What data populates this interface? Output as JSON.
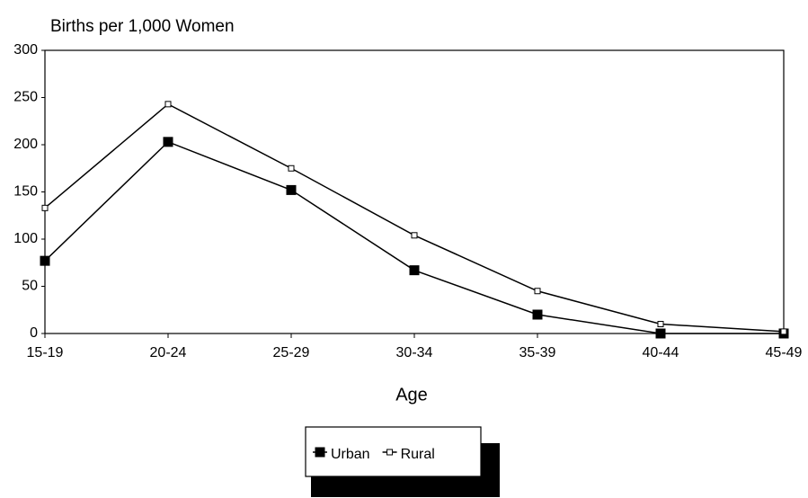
{
  "chart_data": {
    "type": "line",
    "title": "Births per 1,000 Women",
    "x_label": "Age",
    "categories": [
      "15-19",
      "20-24",
      "25-29",
      "30-34",
      "35-39",
      "40-44",
      "45-49"
    ],
    "series": [
      {
        "name": "Urban",
        "color": "#000000",
        "marker": "filled-square",
        "values": [
          77,
          203,
          152,
          67,
          20,
          0,
          0
        ]
      },
      {
        "name": "Rural",
        "color": "#000000",
        "marker": "open-square",
        "values": [
          133,
          243,
          175,
          104,
          45,
          10,
          2
        ]
      }
    ],
    "ylim": [
      0,
      300
    ],
    "yticks": [
      0,
      50,
      100,
      150,
      200,
      250,
      300
    ],
    "grid": false,
    "legend": "bottom"
  }
}
